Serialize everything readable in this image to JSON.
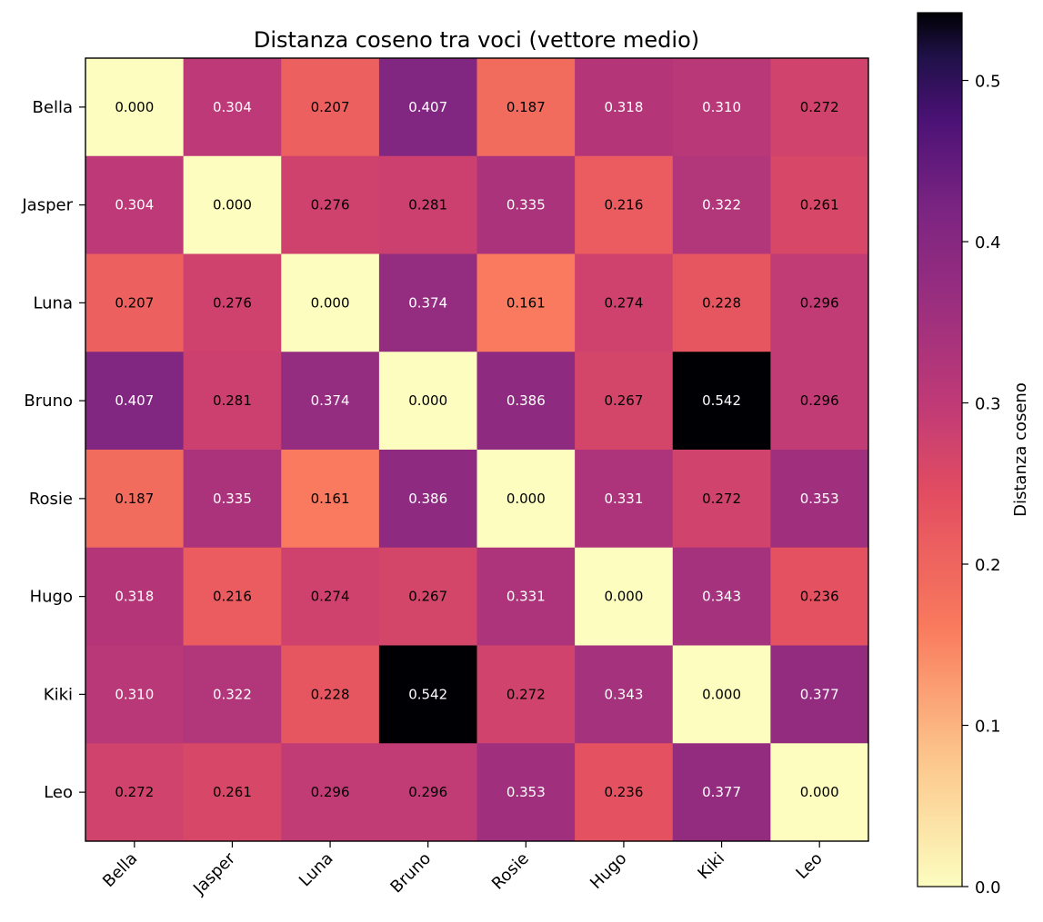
{
  "chart_data": {
    "type": "heatmap",
    "title": "Distanza coseno tra voci (vettore medio)",
    "rows": [
      "Bella",
      "Jasper",
      "Luna",
      "Bruno",
      "Rosie",
      "Hugo",
      "Kiki",
      "Leo"
    ],
    "columns": [
      "Bella",
      "Jasper",
      "Luna",
      "Bruno",
      "Rosie",
      "Hugo",
      "Kiki",
      "Leo"
    ],
    "values": [
      [
        0.0,
        0.304,
        0.207,
        0.407,
        0.187,
        0.318,
        0.31,
        0.272
      ],
      [
        0.304,
        0.0,
        0.276,
        0.281,
        0.335,
        0.216,
        0.322,
        0.261
      ],
      [
        0.207,
        0.276,
        0.0,
        0.374,
        0.161,
        0.274,
        0.228,
        0.296
      ],
      [
        0.407,
        0.281,
        0.374,
        0.0,
        0.386,
        0.267,
        0.542,
        0.296
      ],
      [
        0.187,
        0.335,
        0.161,
        0.386,
        0.0,
        0.331,
        0.272,
        0.353
      ],
      [
        0.318,
        0.216,
        0.274,
        0.267,
        0.331,
        0.0,
        0.343,
        0.236
      ],
      [
        0.31,
        0.322,
        0.228,
        0.542,
        0.272,
        0.343,
        0.0,
        0.377
      ],
      [
        0.272,
        0.261,
        0.296,
        0.296,
        0.353,
        0.236,
        0.377,
        0.0
      ]
    ],
    "value_format": "3 decimals",
    "colormap": "magma_r",
    "colorbar": {
      "label": "Distanza coseno",
      "range": [
        0.0,
        0.542
      ],
      "ticks": [
        0.0,
        0.1,
        0.2,
        0.3,
        0.4,
        0.5
      ],
      "tick_labels": [
        "0.0",
        "0.1",
        "0.2",
        "0.3",
        "0.4",
        "0.5"
      ]
    },
    "colormap_stops": [
      {
        "t": 0.0,
        "color": "#fcfdbf"
      },
      {
        "t": 0.15,
        "color": "#fcc48a"
      },
      {
        "t": 0.3,
        "color": "#f9795d"
      },
      {
        "t": 0.45,
        "color": "#e24d61"
      },
      {
        "t": 0.55,
        "color": "#c03a76"
      },
      {
        "t": 0.65,
        "color": "#a0307e"
      },
      {
        "t": 0.78,
        "color": "#7a2482"
      },
      {
        "t": 0.88,
        "color": "#4a1175"
      },
      {
        "t": 0.95,
        "color": "#1f1148"
      },
      {
        "t": 1.0,
        "color": "#000004"
      }
    ]
  }
}
